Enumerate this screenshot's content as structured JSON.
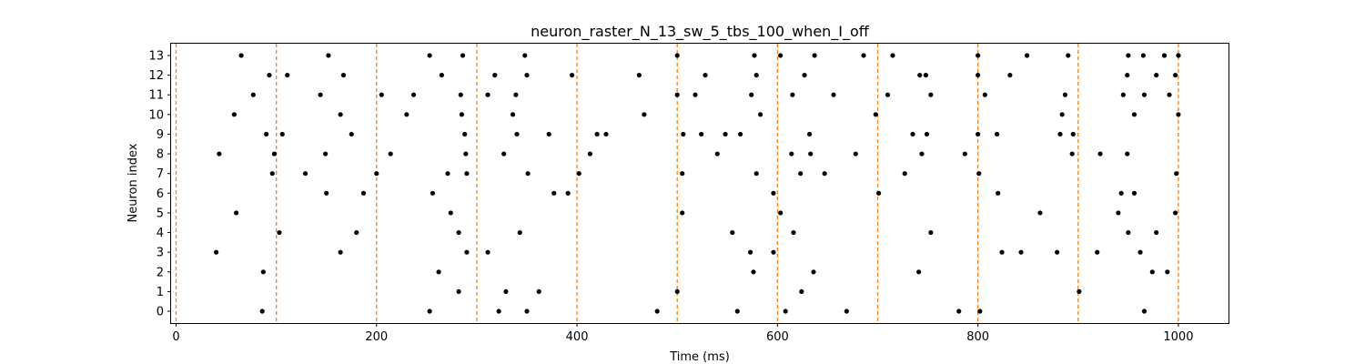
{
  "chart_data": {
    "type": "scatter",
    "title": "neuron_raster_N_13_sw_5_tbs_100_when_I_off",
    "xlabel": "Time (ms)",
    "ylabel": "Neuron index",
    "xlim": [
      -5,
      1050
    ],
    "ylim": [
      -0.6,
      13.6
    ],
    "xticks": [
      0,
      200,
      400,
      600,
      800,
      1000
    ],
    "yticks": [
      0,
      1,
      2,
      3,
      4,
      5,
      6,
      7,
      8,
      9,
      10,
      11,
      12,
      13
    ],
    "grid": false,
    "vlines": [
      0,
      100,
      200,
      300,
      400,
      500,
      600,
      700,
      800,
      900,
      1000
    ],
    "colors": {
      "points": "#000000",
      "vlines": "#ff7f0e",
      "axes": "#000000",
      "background": "#ffffff"
    },
    "spikes": [
      [
        65,
        13
      ],
      [
        152,
        13
      ],
      [
        253,
        13
      ],
      [
        286,
        13
      ],
      [
        348,
        13
      ],
      [
        500,
        13
      ],
      [
        577,
        13
      ],
      [
        603,
        13
      ],
      [
        637,
        13
      ],
      [
        686,
        13
      ],
      [
        715,
        13
      ],
      [
        800,
        13
      ],
      [
        849,
        13
      ],
      [
        890,
        13
      ],
      [
        950,
        13
      ],
      [
        965,
        13
      ],
      [
        986,
        13
      ],
      [
        1000,
        13
      ],
      [
        93,
        12
      ],
      [
        111,
        12
      ],
      [
        167,
        12
      ],
      [
        265,
        12
      ],
      [
        318,
        12
      ],
      [
        350,
        12
      ],
      [
        395,
        12
      ],
      [
        462,
        12
      ],
      [
        528,
        12
      ],
      [
        579,
        12
      ],
      [
        627,
        12
      ],
      [
        742,
        12
      ],
      [
        748,
        12
      ],
      [
        800,
        12
      ],
      [
        832,
        12
      ],
      [
        949,
        12
      ],
      [
        978,
        12
      ],
      [
        997,
        12
      ],
      [
        77,
        11
      ],
      [
        144,
        11
      ],
      [
        205,
        11
      ],
      [
        237,
        11
      ],
      [
        284,
        11
      ],
      [
        311,
        11
      ],
      [
        339,
        11
      ],
      [
        500,
        11
      ],
      [
        518,
        11
      ],
      [
        574,
        11
      ],
      [
        615,
        11
      ],
      [
        656,
        11
      ],
      [
        710,
        11
      ],
      [
        753,
        11
      ],
      [
        807,
        11
      ],
      [
        887,
        11
      ],
      [
        945,
        11
      ],
      [
        966,
        11
      ],
      [
        991,
        11
      ],
      [
        58,
        10
      ],
      [
        164,
        10
      ],
      [
        230,
        10
      ],
      [
        285,
        10
      ],
      [
        336,
        10
      ],
      [
        467,
        10
      ],
      [
        583,
        10
      ],
      [
        698,
        10
      ],
      [
        884,
        10
      ],
      [
        956,
        10
      ],
      [
        1000,
        10
      ],
      [
        90,
        9
      ],
      [
        106,
        9
      ],
      [
        175,
        9
      ],
      [
        288,
        9
      ],
      [
        340,
        9
      ],
      [
        372,
        9
      ],
      [
        420,
        9
      ],
      [
        429,
        9
      ],
      [
        506,
        9
      ],
      [
        524,
        9
      ],
      [
        548,
        9
      ],
      [
        563,
        9
      ],
      [
        632,
        9
      ],
      [
        735,
        9
      ],
      [
        749,
        9
      ],
      [
        800,
        9
      ],
      [
        819,
        9
      ],
      [
        882,
        9
      ],
      [
        895,
        9
      ],
      [
        43,
        8
      ],
      [
        98,
        8
      ],
      [
        149,
        8
      ],
      [
        214,
        8
      ],
      [
        289,
        8
      ],
      [
        327,
        8
      ],
      [
        413,
        8
      ],
      [
        540,
        8
      ],
      [
        614,
        8
      ],
      [
        633,
        8
      ],
      [
        678,
        8
      ],
      [
        744,
        8
      ],
      [
        787,
        8
      ],
      [
        894,
        8
      ],
      [
        922,
        8
      ],
      [
        949,
        8
      ],
      [
        96,
        7
      ],
      [
        129,
        7
      ],
      [
        200,
        7
      ],
      [
        271,
        7
      ],
      [
        290,
        7
      ],
      [
        351,
        7
      ],
      [
        402,
        7
      ],
      [
        505,
        7
      ],
      [
        579,
        7
      ],
      [
        623,
        7
      ],
      [
        647,
        7
      ],
      [
        727,
        7
      ],
      [
        801,
        7
      ],
      [
        998,
        7
      ],
      [
        150,
        6
      ],
      [
        187,
        6
      ],
      [
        256,
        6
      ],
      [
        377,
        6
      ],
      [
        391,
        6
      ],
      [
        596,
        6
      ],
      [
        701,
        6
      ],
      [
        820,
        6
      ],
      [
        943,
        6
      ],
      [
        956,
        6
      ],
      [
        60,
        5
      ],
      [
        274,
        5
      ],
      [
        505,
        5
      ],
      [
        603,
        5
      ],
      [
        862,
        5
      ],
      [
        940,
        5
      ],
      [
        997,
        5
      ],
      [
        103,
        4
      ],
      [
        180,
        4
      ],
      [
        282,
        4
      ],
      [
        343,
        4
      ],
      [
        555,
        4
      ],
      [
        616,
        4
      ],
      [
        753,
        4
      ],
      [
        950,
        4
      ],
      [
        978,
        4
      ],
      [
        40,
        3
      ],
      [
        164,
        3
      ],
      [
        290,
        3
      ],
      [
        311,
        3
      ],
      [
        573,
        3
      ],
      [
        596,
        3
      ],
      [
        824,
        3
      ],
      [
        843,
        3
      ],
      [
        879,
        3
      ],
      [
        919,
        3
      ],
      [
        962,
        3
      ],
      [
        87,
        2
      ],
      [
        262,
        2
      ],
      [
        576,
        2
      ],
      [
        636,
        2
      ],
      [
        741,
        2
      ],
      [
        974,
        2
      ],
      [
        989,
        2
      ],
      [
        282,
        1
      ],
      [
        329,
        1
      ],
      [
        362,
        1
      ],
      [
        500,
        1
      ],
      [
        624,
        1
      ],
      [
        901,
        1
      ],
      [
        86,
        0
      ],
      [
        253,
        0
      ],
      [
        322,
        0
      ],
      [
        350,
        0
      ],
      [
        480,
        0
      ],
      [
        560,
        0
      ],
      [
        608,
        0
      ],
      [
        669,
        0
      ],
      [
        781,
        0
      ],
      [
        802,
        0
      ],
      [
        966,
        0
      ]
    ]
  }
}
